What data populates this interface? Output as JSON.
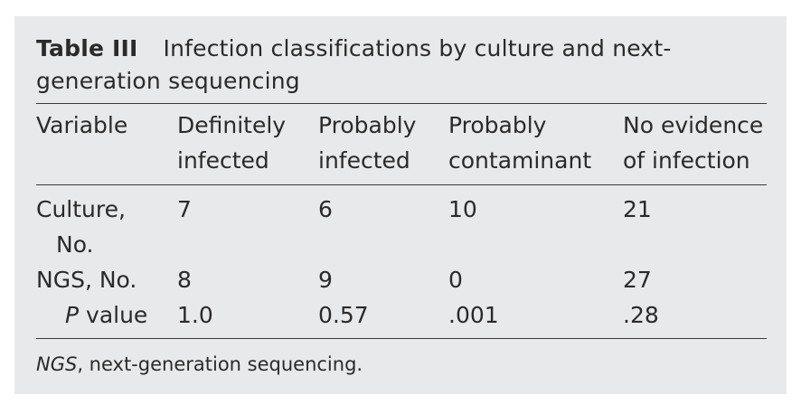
{
  "table": {
    "label": "Table III",
    "title": "Infection classifications by culture and next-generation sequencing",
    "title_line1": "Infection classifications by culture and next-",
    "title_line2": "generation sequencing",
    "headers": [
      [
        "Variable",
        ""
      ],
      [
        "Definitely",
        "infected"
      ],
      [
        "Probably",
        "infected"
      ],
      [
        "Probably",
        "contaminant"
      ],
      [
        "No evidence",
        "of infection"
      ]
    ],
    "rows": [
      {
        "label_line1": "Culture,",
        "label_line2": "No.",
        "values": [
          "7",
          "6",
          "10",
          "21"
        ]
      },
      {
        "label_line1": "NGS, No.",
        "values": [
          "8",
          "9",
          "0",
          "27"
        ]
      },
      {
        "label_italic": "P",
        "label_rest": " value",
        "values": [
          "1.0",
          "0.57",
          ".001",
          ".28"
        ]
      }
    ],
    "footnote_abbr": "NGS",
    "footnote_text": ", next-generation sequencing."
  }
}
